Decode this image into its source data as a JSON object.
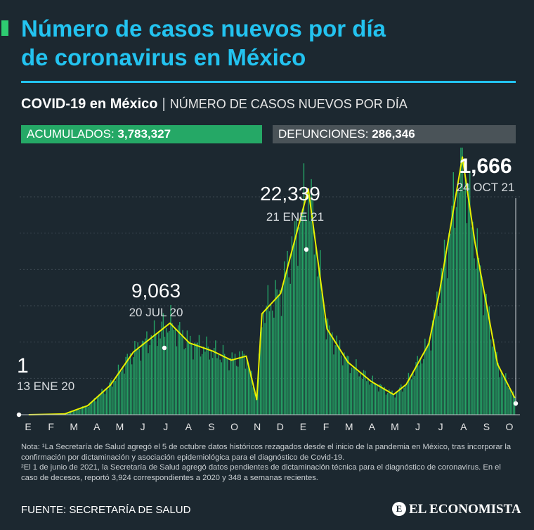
{
  "header": {
    "title_line1": "Número de casos nuevos por día",
    "title_line2": "de coronavirus en México"
  },
  "subhead": {
    "strong": "COVID-19 en México",
    "separator": "|",
    "text": "NÚMERO DE CASOS NUEVOS POR DÍA"
  },
  "stats": {
    "accumulated_label": "ACUMULADOS:",
    "accumulated_value": "3,783,327",
    "deaths_label": "DEFUNCIONES:",
    "deaths_value": "286,346"
  },
  "chart_data": {
    "type": "bar",
    "x_ticks": [
      "E",
      "F",
      "M",
      "A",
      "M",
      "J",
      "J",
      "A",
      "S",
      "O",
      "N",
      "D",
      "E",
      "F",
      "M",
      "A",
      "M",
      "J",
      "J",
      "A",
      "S",
      "O"
    ],
    "ylim": [
      0,
      24000
    ],
    "grid": true,
    "bar_color": "#27b86e",
    "line_color": "#e8f000",
    "series_points": [
      {
        "date": "13 ENE 20",
        "value": 1
      },
      {
        "date": "01 MAR 20",
        "value": 80
      },
      {
        "date": "01 ABR 20",
        "value": 900
      },
      {
        "date": "01 MAY 20",
        "value": 2900
      },
      {
        "date": "01 JUN 20",
        "value": 6200
      },
      {
        "date": "20 JUL 20",
        "value": 9063
      },
      {
        "date": "15 AGO 20",
        "value": 7100
      },
      {
        "date": "15 SEP 20",
        "value": 6300
      },
      {
        "date": "10 OCT 20",
        "value": 5400
      },
      {
        "date": "30 OCT 20",
        "value": 5800
      },
      {
        "date": "13 NOV 20",
        "value": 1500
      },
      {
        "date": "20 NOV 20",
        "value": 10000
      },
      {
        "date": "15 DIC 20",
        "value": 12000
      },
      {
        "date": "21 ENE 21",
        "value": 22339
      },
      {
        "date": "15 FEB 21",
        "value": 8500
      },
      {
        "date": "15 MAR 21",
        "value": 5200
      },
      {
        "date": "15 ABR 21",
        "value": 3300
      },
      {
        "date": "15 MAY 21",
        "value": 2000
      },
      {
        "date": "01 JUN 21",
        "value": 3000
      },
      {
        "date": "01 JUL 21",
        "value": 7000
      },
      {
        "date": "15 JUL 21",
        "value": 12000
      },
      {
        "date": "15 AGO 21",
        "value": 25500
      },
      {
        "date": "01 SEP 21",
        "value": 17000
      },
      {
        "date": "01 OCT 21",
        "value": 5000
      },
      {
        "date": "24 OCT 21",
        "value": 1666
      }
    ],
    "annotations": [
      {
        "value": "1",
        "date": "13 ENE 20"
      },
      {
        "value": "9,063",
        "date": "20 JUL 20"
      },
      {
        "value": "22,339",
        "date": "21 ENE 21"
      },
      {
        "value": "1,666",
        "date": "24 OCT 21"
      }
    ]
  },
  "note": {
    "line1": "Nota: ¹La Secretaría de Salud agregó el 5 de octubre datos históricos rezagados desde el inicio de la pandemia en México, tras incorporar la confirmación por dictaminación y asociación epidemiológica para el diagnóstico de Covid-19.",
    "line2": "²El 1 de junio de 2021, la Secretaría de Salud agregó datos pendientes de dictaminación técnica para el diagnóstico de coronavirus. En el caso de decesos, reportó 3,924 correspondientes a 2020 y 348 a semanas recientes."
  },
  "footer": {
    "source": "FUENTE: SECRETARÍA DE SALUD",
    "logo": "EL ECONOMISTA",
    "logo_mark": "E"
  }
}
